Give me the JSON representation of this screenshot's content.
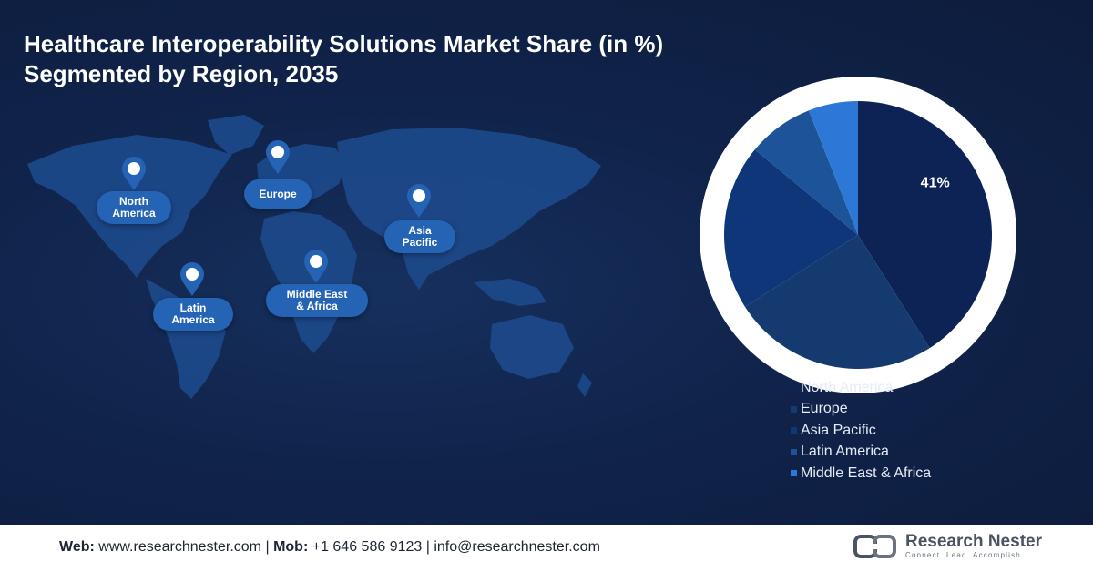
{
  "title_line1": "Healthcare Interoperability Solutions Market Share (in %)",
  "title_line2": "Segmented by Region, 2035",
  "map_labels": {
    "north_america": [
      "North",
      "America"
    ],
    "europe": [
      "Europe"
    ],
    "asia_pacific": [
      "Asia",
      "Pacific"
    ],
    "latin_america": [
      "Latin",
      "America"
    ],
    "middle_east_africa": [
      "Middle East",
      "& Africa"
    ]
  },
  "chart_data": {
    "type": "pie",
    "title": "Healthcare Interoperability Solutions Market Share (in %) Segmented by Region, 2035",
    "categories": [
      "North America",
      "Europe",
      "Asia Pacific",
      "Latin America",
      "Middle East & Africa"
    ],
    "values": [
      41,
      25,
      20,
      8,
      6
    ],
    "colors": [
      "#0d2356",
      "#143a70",
      "#0e3678",
      "#1c5399",
      "#2d78d6"
    ],
    "labels_shown": [
      "41%",
      "",
      "",
      "",
      ""
    ],
    "legend_position": "bottom-right"
  },
  "footer": {
    "web_label": "Web:",
    "web_value": "www.researchnester.com",
    "mob_label": "Mob:",
    "mob_value": "+1 646 586 9123",
    "email_value": "info@researchnester.com",
    "separator": "|"
  },
  "brand": {
    "name": "Research Nester",
    "tagline": "Connect. Lead. Accomplish"
  },
  "colors": {
    "background": "#10234a",
    "pill": "#2563b5",
    "map_land": "#1d4a8c"
  }
}
